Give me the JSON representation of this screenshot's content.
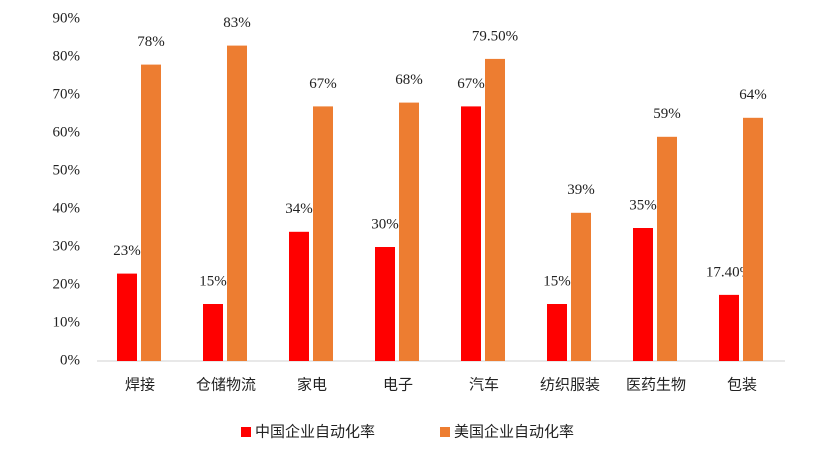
{
  "chart_data": {
    "type": "bar",
    "categories": [
      "焊接",
      "仓储物流",
      "家电",
      "电子",
      "汽车",
      "纺织服装",
      "医药生物",
      "包装"
    ],
    "series": [
      {
        "name": "中国企业自动化率",
        "color": "#ff0000",
        "values": [
          23,
          15,
          34,
          30,
          67,
          15,
          35,
          17.4
        ],
        "value_labels": [
          "23%",
          "15%",
          "34%",
          "30%",
          "67%",
          "15%",
          "35%",
          "17.40%"
        ]
      },
      {
        "name": "美国企业自动化率",
        "color": "#ed7d31",
        "values": [
          78,
          83,
          67,
          68,
          79.5,
          39,
          59,
          64
        ],
        "value_labels": [
          "78%",
          "83%",
          "67%",
          "68%",
          "79.50%",
          "39%",
          "59%",
          "64%"
        ]
      }
    ],
    "ylim": [
      0,
      90
    ],
    "yticks": [
      {
        "value": 0,
        "label": "0%"
      },
      {
        "value": 10,
        "label": "10%"
      },
      {
        "value": 20,
        "label": "20%"
      },
      {
        "value": 30,
        "label": "30%"
      },
      {
        "value": 40,
        "label": "40%"
      },
      {
        "value": 50,
        "label": "50%"
      },
      {
        "value": 60,
        "label": "60%"
      },
      {
        "value": 70,
        "label": "70%"
      },
      {
        "value": 80,
        "label": "80%"
      },
      {
        "value": 90,
        "label": "90%"
      }
    ],
    "grid": false,
    "legend": "bottom"
  }
}
